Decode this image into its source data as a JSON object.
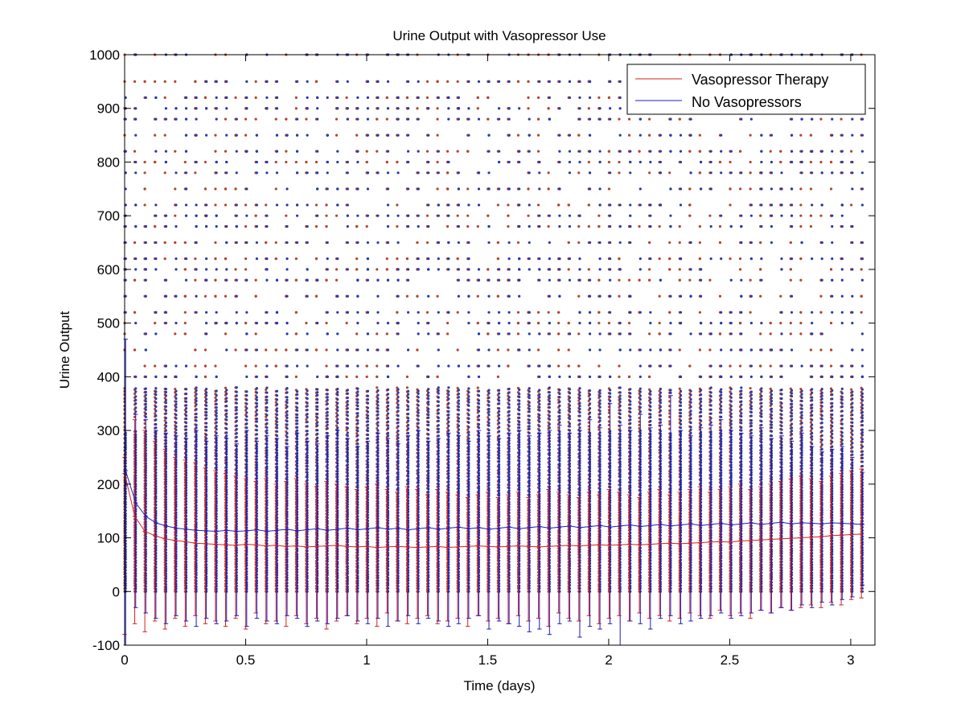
{
  "chart_data": {
    "type": "box",
    "title": "Urine Output with Vasopressor Use",
    "xlabel": "Time (days)",
    "ylabel": "Urine Output",
    "xlim": [
      0,
      3.1
    ],
    "ylim": [
      -100,
      1000
    ],
    "x_ticks": [
      "0",
      "0.5",
      "1",
      "1.5",
      "2",
      "2.5",
      "3"
    ],
    "y_ticks": [
      "-100",
      "0",
      "100",
      "200",
      "300",
      "400",
      "500",
      "600",
      "700",
      "800",
      "900",
      "1000"
    ],
    "grid": false,
    "legend_position": "top-right",
    "interval_days": 0.0417,
    "series": [
      {
        "name": "Vasopressor Therapy",
        "color": "#d62020",
        "outlier_color": "#b5452d",
        "medians": [
          220,
          140,
          112,
          104,
          98,
          95,
          93,
          90,
          89,
          88,
          87,
          86,
          88,
          87,
          85,
          86,
          84,
          85,
          83,
          84,
          85,
          86,
          84,
          83,
          84,
          82,
          83,
          84,
          83,
          82,
          83,
          84,
          82,
          83,
          84,
          85,
          84,
          83,
          84,
          85,
          84,
          83,
          84,
          85,
          86,
          85,
          86,
          87,
          86,
          87,
          88,
          87,
          88,
          89,
          90,
          89,
          90,
          91,
          92,
          93,
          92,
          94,
          95,
          96,
          97,
          98,
          99,
          100,
          101,
          102,
          104,
          105,
          106,
          107
        ],
        "upper_whiskers": [
          250,
          320,
          300,
          280,
          265,
          250,
          245,
          240,
          230,
          225,
          220,
          215,
          210,
          205,
          210,
          200,
          205,
          210,
          200,
          195,
          205,
          200,
          195,
          190,
          195,
          200,
          190,
          185,
          195,
          190,
          180,
          190,
          185,
          180,
          175,
          180,
          185,
          175,
          180,
          185,
          175,
          180,
          190,
          185,
          180,
          175,
          185,
          180,
          190,
          185,
          180,
          175,
          185,
          190,
          180,
          185,
          190,
          195,
          185,
          190,
          195,
          200,
          190,
          195,
          200,
          205,
          210,
          215,
          210,
          205,
          215,
          220,
          225,
          228
        ],
        "lower_whiskers": [
          -80,
          -60,
          -75,
          -55,
          -70,
          -50,
          -65,
          -45,
          -60,
          -55,
          -65,
          -50,
          -70,
          -40,
          -60,
          -55,
          -65,
          -45,
          -60,
          -50,
          -70,
          -55,
          -45,
          -60,
          -50,
          -65,
          -40,
          -55,
          -60,
          -50,
          -45,
          -60,
          -55,
          -50,
          -65,
          -45,
          -55,
          -50,
          -60,
          -45,
          -55,
          -50,
          -65,
          -40,
          -50,
          -55,
          -45,
          -60,
          -50,
          -45,
          -55,
          -40,
          -50,
          -45,
          -55,
          -50,
          -40,
          -45,
          -50,
          -35,
          -45,
          -40,
          -50,
          -35,
          -40,
          -30,
          -35,
          -30,
          -25,
          -30,
          -20,
          -25,
          -15,
          -12
        ]
      },
      {
        "name": "No Vasopressors",
        "color": "#1c1cc0",
        "outlier_color": "#2a3aa8",
        "medians": [
          225,
          165,
          140,
          128,
          122,
          118,
          116,
          114,
          113,
          112,
          114,
          112,
          113,
          115,
          112,
          114,
          116,
          113,
          115,
          117,
          114,
          116,
          118,
          115,
          117,
          119,
          116,
          118,
          115,
          117,
          119,
          116,
          118,
          120,
          117,
          119,
          116,
          118,
          120,
          117,
          119,
          121,
          118,
          120,
          122,
          119,
          121,
          123,
          120,
          122,
          124,
          121,
          123,
          125,
          122,
          124,
          126,
          123,
          125,
          127,
          124,
          126,
          128,
          125,
          127,
          129,
          126,
          128,
          127,
          126,
          128,
          127,
          126,
          125
        ],
        "upper_whiskers": [
          470,
          330,
          320,
          300,
          295,
          290,
          285,
          300,
          280,
          290,
          285,
          275,
          300,
          280,
          290,
          285,
          270,
          295,
          280,
          275,
          290,
          300,
          285,
          270,
          280,
          295,
          285,
          275,
          290,
          300,
          280,
          285,
          295,
          290,
          280,
          300,
          290,
          285,
          295,
          300,
          290,
          295,
          300,
          310,
          295,
          300,
          320,
          305,
          350,
          310,
          300,
          330,
          305,
          310,
          365,
          300,
          290,
          305,
          310,
          320,
          300,
          295,
          290,
          305,
          285,
          290,
          280,
          295,
          270,
          260,
          265,
          270,
          250,
          222
        ],
        "lower_whiskers": [
          -100,
          -30,
          -40,
          -50,
          -60,
          -45,
          -55,
          -65,
          -50,
          -60,
          -55,
          -45,
          -65,
          -50,
          -55,
          -60,
          -45,
          -50,
          -65,
          -55,
          -60,
          -50,
          -45,
          -55,
          -60,
          -50,
          -65,
          -55,
          -45,
          -60,
          -50,
          -55,
          -65,
          -60,
          -50,
          -45,
          -70,
          -55,
          -60,
          -65,
          -75,
          -70,
          -80,
          -60,
          -55,
          -85,
          -65,
          -70,
          -60,
          -100,
          -55,
          -60,
          -70,
          -50,
          -45,
          -60,
          -55,
          -50,
          -45,
          -40,
          -50,
          -45,
          -40,
          -35,
          -40,
          -30,
          -35,
          -25,
          -30,
          -20,
          -25,
          -15,
          -10,
          12
        ]
      }
    ]
  }
}
